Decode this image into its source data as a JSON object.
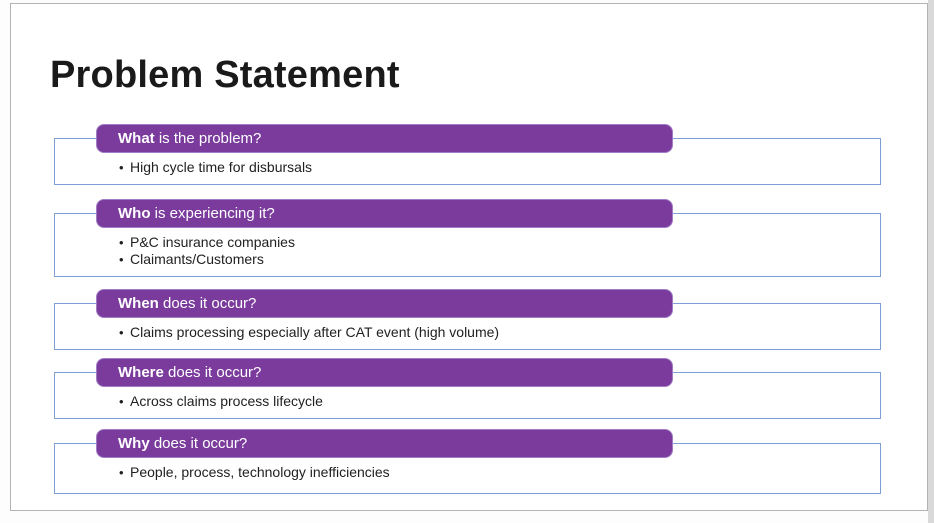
{
  "slide": {
    "title": "Problem Statement",
    "bullet_char": "•",
    "colors": {
      "header_bar": "#7a3b9d",
      "header_text": "#ffffff",
      "box_border": "#7e9fd4",
      "title_text": "#1a1a1a",
      "bullet_text": "#212121"
    },
    "sections": [
      {
        "q_bold": "What",
        "q_rest": " is the problem?",
        "bullets": [
          "High cycle time for disbursals"
        ]
      },
      {
        "q_bold": "Who",
        "q_rest": " is experiencing it?",
        "bullets": [
          "P&C insurance companies",
          "Claimants/Customers"
        ]
      },
      {
        "q_bold": "When",
        "q_rest": " does it occur?",
        "bullets": [
          "Claims processing especially after CAT event (high volume)"
        ]
      },
      {
        "q_bold": "Where",
        "q_rest": " does it occur?",
        "bullets": [
          "Across claims process lifecycle"
        ]
      },
      {
        "q_bold": "Why",
        "q_rest": " does it occur?",
        "bullets": [
          "People, process, technology inefficiencies"
        ]
      }
    ]
  }
}
